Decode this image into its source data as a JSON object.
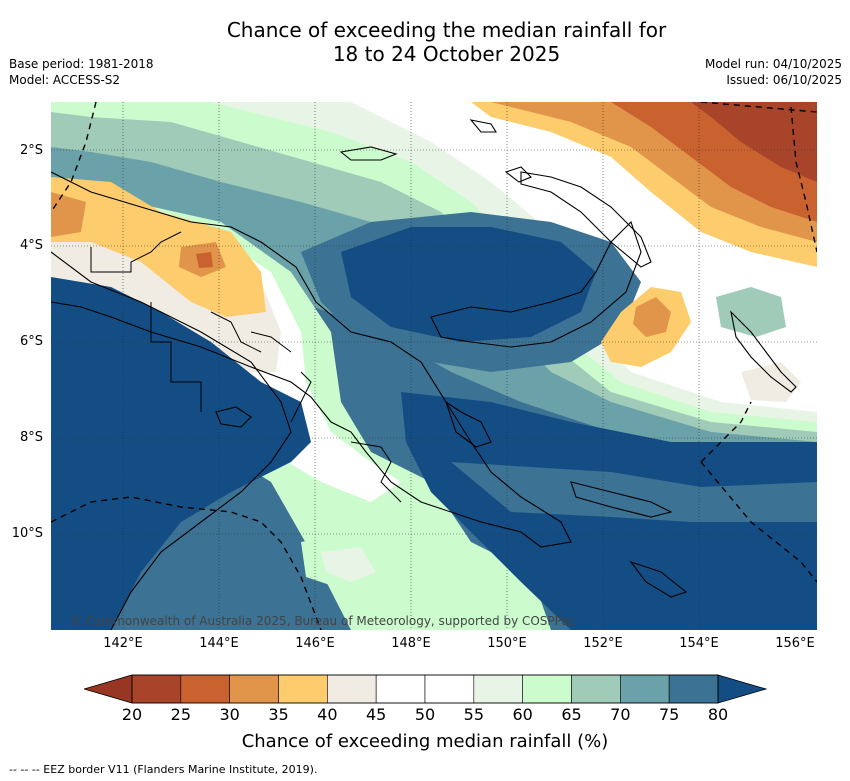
{
  "header": {
    "title_line1": "Chance of exceeding the median rainfall for",
    "title_line2": "18 to 24 October 2025",
    "base_period": "Base period: 1981-2018",
    "model": "Model: ACCESS-S2",
    "model_run": "Model run: 04/10/2025",
    "issued": "Issued: 06/10/2025"
  },
  "axes": {
    "lat_labels": [
      "2°S",
      "4°S",
      "6°S",
      "8°S",
      "10°S"
    ],
    "lon_labels": [
      "142°E",
      "144°E",
      "146°E",
      "148°E",
      "150°E",
      "152°E",
      "154°E",
      "156°E"
    ]
  },
  "map": {
    "copyright": "© Commonwealth of Australia 2025, Bureau of Meteorology, supported by COSPPac",
    "colors": {
      "c20": "#a8442a",
      "c25": "#c9622f",
      "c30": "#e0954a",
      "c35": "#fdcc6d",
      "c40": "#f0ebe3",
      "c45": "#ffffff",
      "c55": "#e8f5e6",
      "c60": "#ccfcce",
      "c65": "#9fcbb8",
      "c70": "#6ba1a8",
      "c75": "#3c7294",
      "c80": "#134d84",
      "land": "#000000"
    }
  },
  "colorbar": {
    "ticks": [
      "20",
      "25",
      "30",
      "35",
      "40",
      "45",
      "50",
      "55",
      "60",
      "65",
      "70",
      "75",
      "80"
    ],
    "colors": [
      "#a8442a",
      "#c9622f",
      "#e0954a",
      "#fdcc6d",
      "#f0ebe3",
      "#ffffff",
      "#ffffff",
      "#e8f5e6",
      "#ccfcce",
      "#9fcbb8",
      "#6ba1a8",
      "#3c7294"
    ],
    "under_color": "#983624",
    "over_color": "#134d84",
    "label": "Chance of exceeding median rainfall (%)"
  },
  "legend": {
    "eez": "--  --  -- EEZ border V11 (Flanders Marine Institute, 2019)."
  }
}
